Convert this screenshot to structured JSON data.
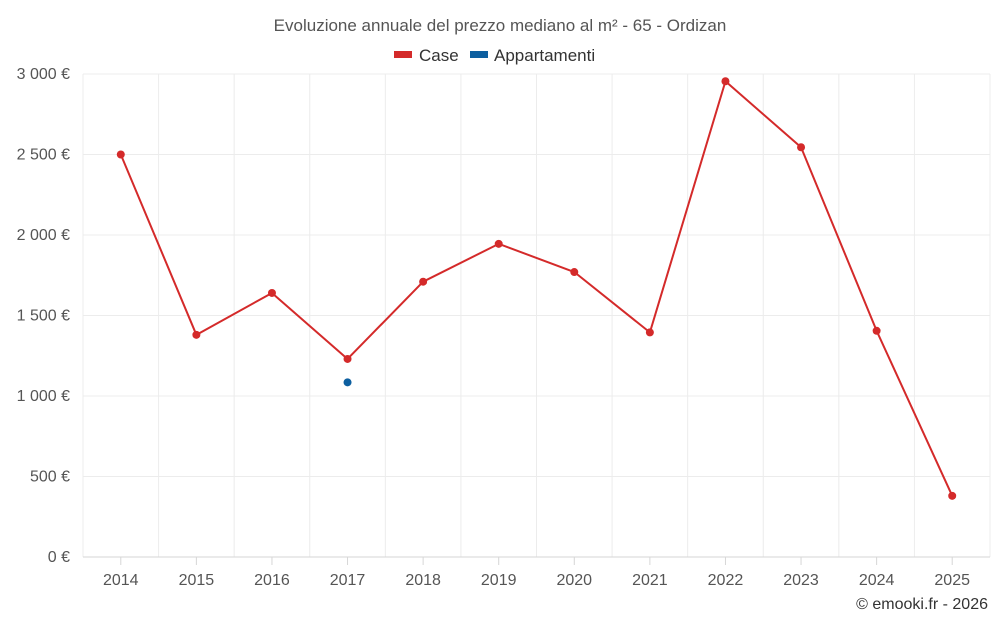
{
  "chart_data": {
    "type": "line",
    "title": "Evoluzione annuale del prezzo mediano al m² - 65 - Ordizan",
    "xlabel": "",
    "ylabel": "",
    "categories": [
      "2014",
      "2015",
      "2016",
      "2017",
      "2018",
      "2019",
      "2020",
      "2021",
      "2022",
      "2023",
      "2024",
      "2025"
    ],
    "series": [
      {
        "name": "Case",
        "color": "#d42a2a",
        "values": [
          2500,
          1380,
          1640,
          1230,
          1710,
          1945,
          1770,
          1395,
          2955,
          2545,
          1405,
          380
        ]
      },
      {
        "name": "Appartamenti",
        "color": "#0d5fa0",
        "values": [
          null,
          null,
          null,
          1085,
          null,
          null,
          null,
          null,
          null,
          null,
          null,
          null
        ]
      }
    ],
    "ylim": [
      0,
      3000
    ],
    "yticks": [
      0,
      500,
      1000,
      1500,
      2000,
      2500,
      3000
    ],
    "ytick_labels": [
      "0 €",
      "500 €",
      "1 000 €",
      "1 500 €",
      "2 000 €",
      "2 500 €",
      "3 000 €"
    ],
    "grid": true,
    "legend": "top-center"
  },
  "credit": "© emooki.fr - 2026"
}
